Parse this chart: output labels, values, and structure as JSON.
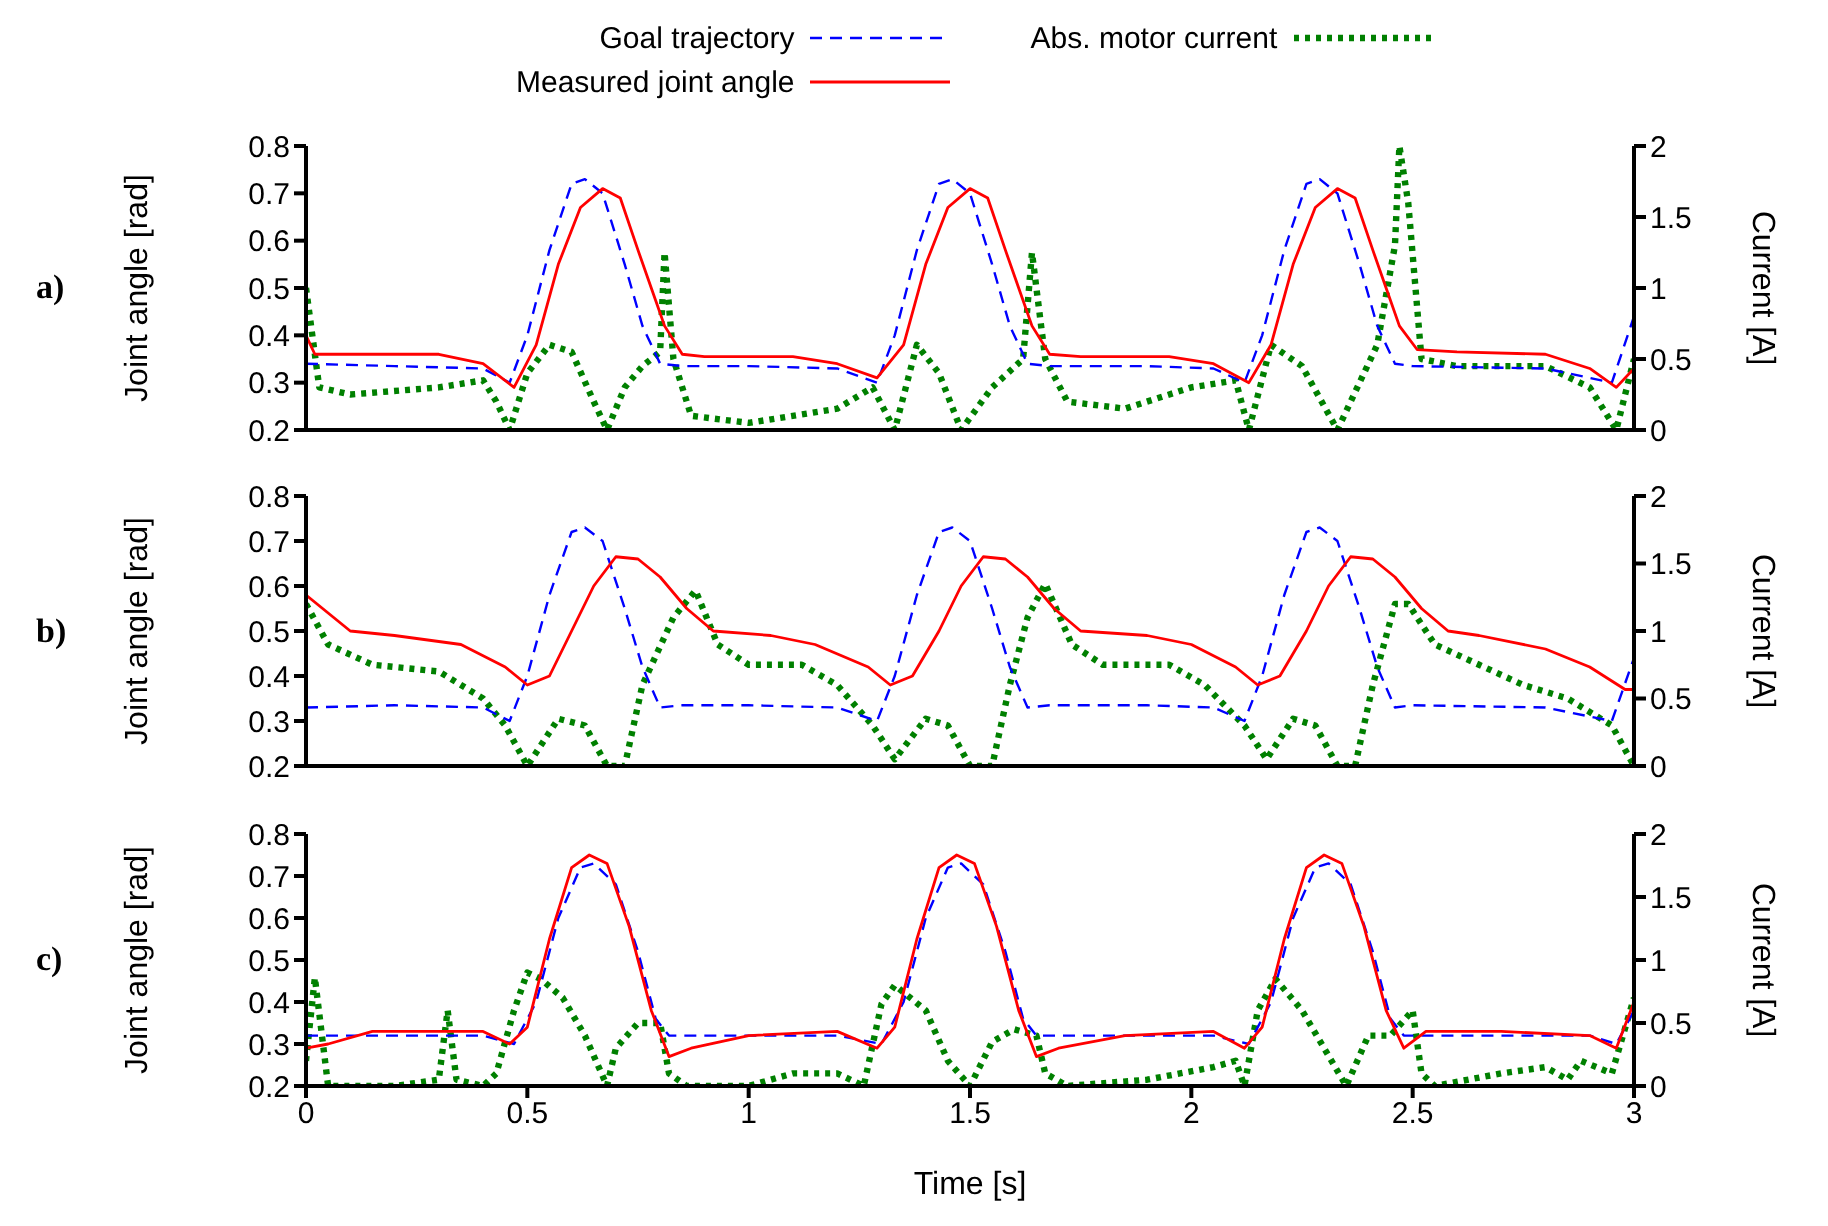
{
  "chart_data": [
    {
      "type": "line",
      "annotations": [
        "a)"
      ],
      "ylabel": "Joint angle [rad]",
      "y2label": "Current [A]",
      "xlim": [
        0,
        3
      ],
      "xticks": [
        0,
        0.5,
        1,
        1.5,
        2,
        2.5,
        3
      ],
      "ylim": [
        0.2,
        0.8
      ],
      "yticks": [
        0.2,
        0.3,
        0.4,
        0.5,
        0.6,
        0.7,
        0.8
      ],
      "y2lim": [
        0,
        2
      ],
      "y2ticks": [
        0,
        0.5,
        1,
        1.5,
        2
      ],
      "tick_labels": "y",
      "legend": "top",
      "series": [
        {
          "name": "Goal trajectory",
          "color": "#0000ff",
          "line_style": "dashed",
          "x": [
            0,
            0.2,
            0.4,
            0.46,
            0.5,
            0.55,
            0.6,
            0.63,
            0.67,
            0.72,
            0.76,
            0.8,
            0.85,
            1.0,
            1.2,
            1.29,
            1.33,
            1.38,
            1.43,
            1.46,
            1.5,
            1.55,
            1.59,
            1.63,
            1.68,
            1.9,
            2.05,
            2.12,
            2.16,
            2.21,
            2.26,
            2.29,
            2.33,
            2.38,
            2.42,
            2.46,
            2.5,
            2.8,
            2.95,
            3.0
          ],
          "values": [
            0.34,
            0.335,
            0.33,
            0.3,
            0.4,
            0.58,
            0.72,
            0.73,
            0.7,
            0.55,
            0.42,
            0.34,
            0.335,
            0.335,
            0.33,
            0.3,
            0.4,
            0.58,
            0.72,
            0.73,
            0.7,
            0.55,
            0.42,
            0.34,
            0.335,
            0.335,
            0.33,
            0.3,
            0.4,
            0.58,
            0.72,
            0.73,
            0.7,
            0.55,
            0.42,
            0.34,
            0.335,
            0.33,
            0.3,
            0.44
          ]
        },
        {
          "name": "Measured joint angle",
          "color": "#ff0000",
          "line_style": "solid",
          "x": [
            0,
            0.02,
            0.3,
            0.4,
            0.47,
            0.52,
            0.57,
            0.62,
            0.67,
            0.71,
            0.75,
            0.78,
            0.81,
            0.85,
            0.9,
            1.1,
            1.2,
            1.29,
            1.35,
            1.4,
            1.45,
            1.5,
            1.54,
            1.58,
            1.61,
            1.64,
            1.68,
            1.75,
            1.95,
            2.05,
            2.13,
            2.18,
            2.23,
            2.28,
            2.33,
            2.37,
            2.41,
            2.44,
            2.47,
            2.51,
            2.6,
            2.8,
            2.9,
            2.96,
            3.0
          ],
          "values": [
            0.4,
            0.36,
            0.36,
            0.34,
            0.29,
            0.38,
            0.55,
            0.67,
            0.71,
            0.69,
            0.58,
            0.5,
            0.42,
            0.36,
            0.355,
            0.355,
            0.34,
            0.31,
            0.38,
            0.55,
            0.67,
            0.71,
            0.69,
            0.58,
            0.5,
            0.42,
            0.36,
            0.355,
            0.355,
            0.34,
            0.3,
            0.38,
            0.55,
            0.67,
            0.71,
            0.69,
            0.58,
            0.5,
            0.42,
            0.37,
            0.365,
            0.36,
            0.33,
            0.29,
            0.33
          ]
        },
        {
          "name": "Abs. motor current",
          "color": "#008000",
          "line_style": "dotted",
          "axis": "y2",
          "x": [
            0,
            0.03,
            0.1,
            0.3,
            0.4,
            0.43,
            0.46,
            0.5,
            0.55,
            0.6,
            0.65,
            0.68,
            0.72,
            0.76,
            0.8,
            0.81,
            0.83,
            0.87,
            1.0,
            1.2,
            1.28,
            1.33,
            1.38,
            1.43,
            1.48,
            1.55,
            1.62,
            1.64,
            1.67,
            1.72,
            1.85,
            2.0,
            2.1,
            2.13,
            2.18,
            2.25,
            2.33,
            2.42,
            2.46,
            2.47,
            2.49,
            2.52,
            2.6,
            2.8,
            2.9,
            2.96,
            3.0
          ],
          "values": [
            1.0,
            0.3,
            0.25,
            0.3,
            0.35,
            0.2,
            0,
            0.4,
            0.6,
            0.55,
            0.2,
            0,
            0.3,
            0.45,
            0.55,
            1.25,
            0.5,
            0.1,
            0.05,
            0.15,
            0.3,
            0,
            0.6,
            0.4,
            0,
            0.3,
            0.5,
            1.25,
            0.5,
            0.2,
            0.15,
            0.3,
            0.35,
            0,
            0.6,
            0.45,
            0,
            0.6,
            1.3,
            2,
            1.6,
            0.5,
            0.45,
            0.45,
            0.3,
            0,
            0.5
          ]
        }
      ]
    },
    {
      "type": "line",
      "annotations": [
        "b)"
      ],
      "ylabel": "Joint angle [rad]",
      "y2label": "Current [A]",
      "xlim": [
        0,
        3
      ],
      "xticks": [
        0,
        0.5,
        1,
        1.5,
        2,
        2.5,
        3
      ],
      "ylim": [
        0.2,
        0.8
      ],
      "yticks": [
        0.2,
        0.3,
        0.4,
        0.5,
        0.6,
        0.7,
        0.8
      ],
      "y2lim": [
        0,
        2
      ],
      "y2ticks": [
        0,
        0.5,
        1,
        1.5,
        2
      ],
      "tick_labels": "y",
      "series": [
        {
          "color": "#0000ff",
          "line_style": "dashed",
          "x": [
            0,
            0.2,
            0.4,
            0.46,
            0.5,
            0.55,
            0.6,
            0.63,
            0.67,
            0.72,
            0.76,
            0.8,
            0.85,
            1.0,
            1.2,
            1.29,
            1.33,
            1.38,
            1.43,
            1.46,
            1.5,
            1.55,
            1.59,
            1.63,
            1.68,
            1.9,
            2.05,
            2.12,
            2.16,
            2.21,
            2.26,
            2.29,
            2.33,
            2.38,
            2.42,
            2.46,
            2.5,
            2.8,
            2.95,
            3.0
          ],
          "values": [
            0.33,
            0.335,
            0.33,
            0.3,
            0.4,
            0.58,
            0.72,
            0.73,
            0.7,
            0.55,
            0.42,
            0.33,
            0.335,
            0.335,
            0.33,
            0.3,
            0.4,
            0.58,
            0.72,
            0.73,
            0.7,
            0.55,
            0.42,
            0.33,
            0.335,
            0.335,
            0.33,
            0.3,
            0.4,
            0.58,
            0.72,
            0.73,
            0.7,
            0.55,
            0.42,
            0.33,
            0.335,
            0.33,
            0.3,
            0.44
          ]
        },
        {
          "color": "#ff0000",
          "line_style": "solid",
          "x": [
            0,
            0.1,
            0.2,
            0.35,
            0.45,
            0.5,
            0.55,
            0.6,
            0.65,
            0.7,
            0.75,
            0.8,
            0.86,
            0.92,
            1.05,
            1.15,
            1.27,
            1.32,
            1.37,
            1.43,
            1.48,
            1.53,
            1.58,
            1.63,
            1.69,
            1.75,
            1.9,
            2.0,
            2.1,
            2.15,
            2.2,
            2.26,
            2.31,
            2.36,
            2.41,
            2.46,
            2.52,
            2.58,
            2.65,
            2.8,
            2.9,
            2.98,
            3.0
          ],
          "values": [
            0.58,
            0.5,
            0.49,
            0.47,
            0.42,
            0.38,
            0.4,
            0.5,
            0.6,
            0.665,
            0.66,
            0.62,
            0.55,
            0.5,
            0.49,
            0.47,
            0.42,
            0.38,
            0.4,
            0.5,
            0.6,
            0.665,
            0.66,
            0.62,
            0.55,
            0.5,
            0.49,
            0.47,
            0.42,
            0.38,
            0.4,
            0.5,
            0.6,
            0.665,
            0.66,
            0.62,
            0.55,
            0.5,
            0.49,
            0.46,
            0.42,
            0.37,
            0.37
          ]
        },
        {
          "color": "#008000",
          "line_style": "dotted",
          "axis": "y2",
          "x": [
            0,
            0.05,
            0.15,
            0.3,
            0.4,
            0.45,
            0.5,
            0.57,
            0.63,
            0.68,
            0.72,
            0.76,
            0.83,
            0.88,
            0.93,
            1.0,
            1.12,
            1.2,
            1.28,
            1.33,
            1.4,
            1.45,
            1.5,
            1.55,
            1.59,
            1.63,
            1.67,
            1.73,
            1.8,
            1.95,
            2.03,
            2.12,
            2.17,
            2.23,
            2.28,
            2.33,
            2.37,
            2.41,
            2.46,
            2.49,
            2.55,
            2.65,
            2.75,
            2.85,
            2.95,
            3.0
          ],
          "values": [
            1.2,
            0.9,
            0.75,
            0.7,
            0.5,
            0.3,
            0,
            0.35,
            0.3,
            0,
            0,
            0.6,
            1.1,
            1.3,
            0.9,
            0.75,
            0.75,
            0.6,
            0.3,
            0.05,
            0.35,
            0.3,
            0,
            0,
            0.6,
            1.1,
            1.35,
            0.9,
            0.75,
            0.75,
            0.6,
            0.3,
            0.05,
            0.35,
            0.3,
            0,
            0,
            0.6,
            1.2,
            1.2,
            0.9,
            0.75,
            0.6,
            0.5,
            0.3,
            0
          ]
        }
      ]
    },
    {
      "type": "line",
      "annotations": [
        "c)"
      ],
      "xlabel": "Time [s]",
      "ylabel": "Joint angle [rad]",
      "y2label": "Current [A]",
      "xlim": [
        0,
        3
      ],
      "xticks": [
        0,
        0.5,
        1,
        1.5,
        2,
        2.5,
        3
      ],
      "ylim": [
        0.2,
        0.8
      ],
      "yticks": [
        0.2,
        0.3,
        0.4,
        0.5,
        0.6,
        0.7,
        0.8
      ],
      "y2lim": [
        0,
        2
      ],
      "y2ticks": [
        0,
        0.5,
        1,
        1.5,
        2
      ],
      "series": [
        {
          "color": "#0000ff",
          "line_style": "dashed",
          "x": [
            0,
            0.4,
            0.47,
            0.52,
            0.57,
            0.62,
            0.65,
            0.7,
            0.75,
            0.79,
            0.82,
            1.2,
            1.3,
            1.35,
            1.4,
            1.45,
            1.48,
            1.53,
            1.58,
            1.62,
            1.65,
            2.05,
            2.13,
            2.18,
            2.23,
            2.28,
            2.31,
            2.36,
            2.41,
            2.45,
            2.48,
            2.9,
            2.96,
            3.0
          ],
          "values": [
            0.32,
            0.32,
            0.3,
            0.4,
            0.6,
            0.72,
            0.73,
            0.68,
            0.52,
            0.36,
            0.32,
            0.32,
            0.3,
            0.4,
            0.6,
            0.72,
            0.73,
            0.68,
            0.52,
            0.36,
            0.32,
            0.32,
            0.3,
            0.4,
            0.6,
            0.72,
            0.73,
            0.68,
            0.52,
            0.36,
            0.32,
            0.32,
            0.3,
            0.38
          ]
        },
        {
          "color": "#ff0000",
          "line_style": "solid",
          "x": [
            0,
            0.05,
            0.15,
            0.4,
            0.46,
            0.5,
            0.55,
            0.6,
            0.64,
            0.68,
            0.73,
            0.78,
            0.82,
            0.87,
            1.0,
            1.2,
            1.29,
            1.33,
            1.38,
            1.43,
            1.47,
            1.51,
            1.56,
            1.61,
            1.65,
            1.7,
            1.85,
            2.05,
            2.12,
            2.16,
            2.21,
            2.26,
            2.3,
            2.34,
            2.39,
            2.44,
            2.48,
            2.53,
            2.7,
            2.9,
            2.96,
            3.0
          ],
          "values": [
            0.29,
            0.3,
            0.33,
            0.33,
            0.3,
            0.34,
            0.55,
            0.72,
            0.75,
            0.73,
            0.58,
            0.38,
            0.27,
            0.29,
            0.32,
            0.33,
            0.29,
            0.34,
            0.55,
            0.72,
            0.75,
            0.73,
            0.58,
            0.38,
            0.27,
            0.29,
            0.32,
            0.33,
            0.29,
            0.34,
            0.55,
            0.72,
            0.75,
            0.73,
            0.58,
            0.38,
            0.29,
            0.33,
            0.33,
            0.32,
            0.29,
            0.4
          ]
        },
        {
          "color": "#008000",
          "line_style": "dotted",
          "axis": "y2",
          "x": [
            0,
            0.02,
            0.05,
            0.2,
            0.3,
            0.32,
            0.34,
            0.4,
            0.43,
            0.47,
            0.5,
            0.53,
            0.58,
            0.63,
            0.68,
            0.7,
            0.75,
            0.8,
            0.82,
            0.86,
            1.0,
            1.1,
            1.2,
            1.26,
            1.3,
            1.33,
            1.4,
            1.45,
            1.5,
            1.55,
            1.6,
            1.65,
            1.67,
            1.72,
            1.9,
            2.05,
            2.1,
            2.12,
            2.15,
            2.19,
            2.25,
            2.3,
            2.35,
            2.4,
            2.45,
            2.5,
            2.52,
            2.55,
            2.7,
            2.8,
            2.85,
            2.88,
            2.95,
            3.0
          ],
          "values": [
            0.2,
            0.86,
            0,
            0,
            0.05,
            0.6,
            0.05,
            0,
            0.1,
            0.6,
            0.9,
            0.85,
            0.7,
            0.4,
            0,
            0.3,
            0.5,
            0.5,
            0.1,
            0,
            0,
            0.1,
            0.1,
            0,
            0.65,
            0.8,
            0.6,
            0.2,
            0,
            0.35,
            0.45,
            0.4,
            0.1,
            0,
            0.05,
            0.15,
            0.2,
            0,
            0.6,
            0.85,
            0.6,
            0.3,
            0,
            0.4,
            0.4,
            0.6,
            0.1,
            0,
            0.1,
            0.15,
            0.05,
            0.2,
            0.1,
            0.7
          ]
        }
      ]
    }
  ]
}
